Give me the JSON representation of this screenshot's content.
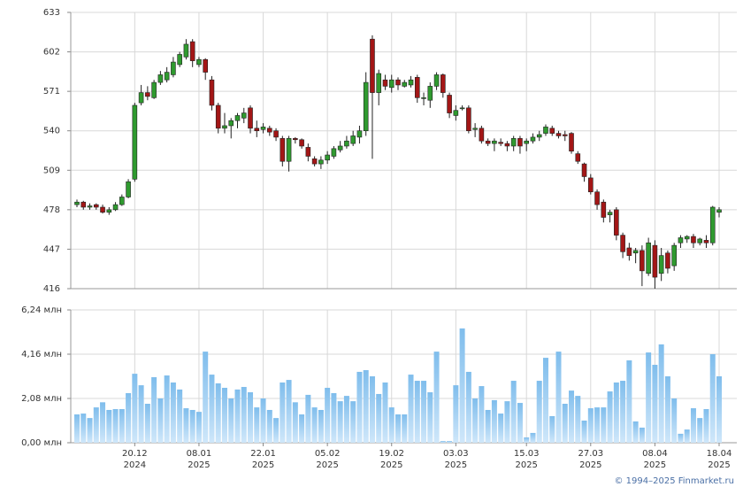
{
  "chart_data": [
    {
      "type": "candlestick",
      "ylim": [
        416,
        633
      ],
      "yticks": [
        416,
        447,
        478,
        509,
        540,
        571,
        602,
        633
      ],
      "grid": true,
      "up_color": "#2f9a2f",
      "down_color": "#a31616",
      "open": [
        482,
        484,
        480,
        482,
        480,
        476,
        478,
        482,
        488,
        502,
        562,
        570,
        566,
        578,
        580,
        584,
        592,
        598,
        610,
        592,
        596,
        580,
        560,
        542,
        544,
        548,
        550,
        558,
        542,
        541,
        542,
        540,
        534,
        516,
        534,
        533,
        527,
        518,
        514,
        517,
        520,
        525,
        528,
        530,
        535,
        540,
        612,
        570,
        580,
        574,
        580,
        575,
        576,
        582,
        566,
        564,
        575,
        584,
        568,
        552,
        558,
        558,
        541,
        542,
        532,
        530,
        531,
        530,
        528,
        534,
        530,
        532,
        535,
        538,
        542,
        538,
        537,
        538,
        522,
        514,
        503,
        492,
        484,
        474,
        478,
        458,
        448,
        444,
        446,
        428,
        450,
        428,
        444,
        434,
        452,
        455,
        457,
        452,
        454,
        452,
        476
      ],
      "high": [
        486,
        485,
        483,
        483,
        482,
        480,
        484,
        490,
        502,
        562,
        576,
        575,
        580,
        587,
        590,
        598,
        602,
        612,
        612,
        598,
        597,
        583,
        562,
        554,
        550,
        554,
        558,
        560,
        548,
        546,
        544,
        542,
        536,
        536,
        535,
        534,
        530,
        520,
        520,
        524,
        528,
        532,
        536,
        540,
        544,
        586,
        615,
        588,
        584,
        584,
        582,
        580,
        583,
        584,
        570,
        578,
        586,
        585,
        570,
        560,
        560,
        560,
        546,
        544,
        534,
        534,
        534,
        532,
        536,
        536,
        534,
        538,
        540,
        545,
        544,
        540,
        540,
        539,
        524,
        515,
        506,
        494,
        486,
        478,
        480,
        460,
        452,
        448,
        450,
        456,
        454,
        448,
        446,
        452,
        458,
        458,
        459,
        456,
        458,
        481,
        480
      ],
      "low": [
        480,
        478,
        478,
        478,
        475,
        474,
        477,
        481,
        487,
        500,
        560,
        564,
        565,
        576,
        578,
        582,
        590,
        596,
        590,
        590,
        580,
        556,
        538,
        538,
        534,
        542,
        546,
        538,
        535,
        538,
        536,
        532,
        512,
        508,
        530,
        526,
        516,
        512,
        510,
        514,
        518,
        523,
        526,
        528,
        530,
        536,
        518,
        560,
        572,
        570,
        572,
        574,
        574,
        562,
        560,
        558,
        572,
        566,
        550,
        548,
        556,
        538,
        535,
        530,
        528,
        524,
        528,
        524,
        524,
        522,
        524,
        530,
        532,
        536,
        536,
        534,
        532,
        522,
        514,
        500,
        490,
        478,
        468,
        468,
        454,
        440,
        438,
        436,
        418,
        426,
        416,
        422,
        428,
        430,
        448,
        452,
        448,
        450,
        448,
        450,
        472
      ],
      "close": [
        484,
        480,
        481,
        480,
        476,
        478,
        482,
        488,
        500,
        560,
        570,
        567,
        578,
        584,
        586,
        594,
        600,
        608,
        595,
        596,
        586,
        560,
        542,
        544,
        548,
        552,
        554,
        542,
        540,
        543,
        539,
        535,
        516,
        534,
        533,
        528,
        520,
        514,
        517,
        521,
        526,
        528,
        532,
        536,
        540,
        578,
        570,
        585,
        575,
        580,
        576,
        578,
        580,
        566,
        566,
        575,
        584,
        570,
        554,
        556,
        558,
        540,
        542,
        532,
        530,
        532,
        530,
        528,
        534,
        528,
        532,
        535,
        537,
        543,
        538,
        536,
        536,
        524,
        516,
        504,
        492,
        482,
        472,
        476,
        458,
        445,
        442,
        446,
        430,
        452,
        425,
        442,
        432,
        450,
        456,
        457,
        452,
        455,
        452,
        480,
        478
      ]
    },
    {
      "type": "bar",
      "color": "#8cc6f0",
      "ylim": [
        0,
        6.24
      ],
      "yticks": [
        {
          "value": 0,
          "label": "0,00 млн"
        },
        {
          "value": 2.08,
          "label": "2,08 млн"
        },
        {
          "value": 4.16,
          "label": "4,16 млн"
        },
        {
          "value": 6.24,
          "label": "6,24 млн"
        }
      ],
      "values": [
        1.33,
        1.37,
        1.16,
        1.66,
        1.9,
        1.54,
        1.58,
        1.58,
        2.33,
        3.24,
        2.7,
        1.83,
        3.08,
        2.08,
        3.16,
        2.83,
        2.5,
        1.62,
        1.54,
        1.45,
        4.28,
        3.2,
        2.79,
        2.58,
        2.08,
        2.5,
        2.62,
        2.37,
        1.66,
        2.08,
        1.54,
        1.16,
        2.83,
        2.95,
        1.9,
        1.33,
        2.25,
        1.66,
        1.54,
        2.58,
        2.33,
        1.95,
        2.2,
        1.95,
        3.33,
        3.41,
        3.12,
        2.29,
        2.83,
        1.66,
        1.33,
        1.33,
        3.2,
        2.91,
        2.91,
        2.37,
        4.28,
        0.08,
        0.08,
        2.7,
        5.37,
        3.33,
        2.08,
        2.66,
        1.54,
        2.0,
        1.37,
        1.95,
        2.91,
        1.87,
        0.25,
        0.46,
        2.91,
        3.99,
        1.25,
        4.28,
        1.83,
        2.45,
        2.2,
        1.04,
        1.62,
        1.66,
        1.66,
        2.41,
        2.83,
        2.91,
        3.87,
        1.0,
        0.71,
        4.24,
        3.66,
        4.62,
        3.12,
        2.08,
        0.42,
        0.62,
        1.62,
        1.16,
        1.58,
        4.16,
        3.12
      ],
      "categories": [
        null,
        null,
        null,
        null,
        null,
        null,
        null,
        null,
        null,
        "20.12",
        null,
        null,
        null,
        null,
        null,
        null,
        null,
        null,
        null,
        "08.01",
        null,
        null,
        null,
        null,
        null,
        null,
        null,
        null,
        null,
        "22.01",
        null,
        null,
        null,
        null,
        null,
        null,
        null,
        null,
        null,
        "05.02",
        null,
        null,
        null,
        null,
        null,
        null,
        null,
        null,
        null,
        "19.02",
        null,
        null,
        null,
        null,
        null,
        null,
        null,
        null,
        null,
        "03.03",
        null,
        null,
        null,
        null,
        null,
        null,
        null,
        null,
        null,
        null,
        "15.03",
        null,
        null,
        null,
        null,
        null,
        null,
        null,
        null,
        null,
        "27.03",
        null,
        null,
        null,
        null,
        null,
        null,
        null,
        null,
        null,
        "08.04",
        null,
        null,
        null,
        null,
        null,
        null,
        null,
        null,
        null,
        "18.04"
      ],
      "years": [
        null,
        null,
        null,
        null,
        null,
        null,
        null,
        null,
        null,
        "2024",
        null,
        null,
        null,
        null,
        null,
        null,
        null,
        null,
        null,
        "2025",
        null,
        null,
        null,
        null,
        null,
        null,
        null,
        null,
        null,
        "2025",
        null,
        null,
        null,
        null,
        null,
        null,
        null,
        null,
        null,
        "2025",
        null,
        null,
        null,
        null,
        null,
        null,
        null,
        null,
        null,
        "2025",
        null,
        null,
        null,
        null,
        null,
        null,
        null,
        null,
        null,
        "2025",
        null,
        null,
        null,
        null,
        null,
        null,
        null,
        null,
        null,
        null,
        "2025",
        null,
        null,
        null,
        null,
        null,
        null,
        null,
        null,
        null,
        "2025",
        null,
        null,
        null,
        null,
        null,
        null,
        null,
        null,
        null,
        "2025",
        null,
        null,
        null,
        null,
        null,
        null,
        null,
        null,
        null,
        "2025"
      ]
    }
  ],
  "footer": "© 1994–2025 Finmarket.ru"
}
